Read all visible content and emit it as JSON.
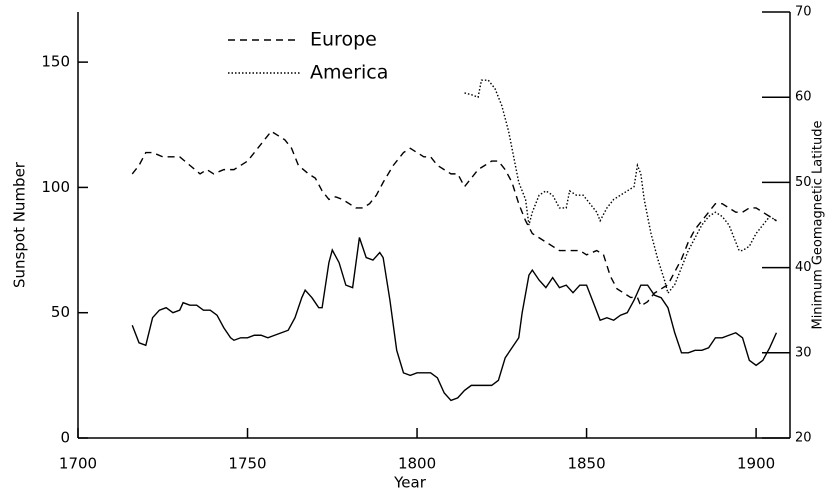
{
  "chart_data": {
    "type": "line",
    "xlabel": "Year",
    "ylabel": "Sunspot Number",
    "y2label": "Minimum Geomagnetic Latitude",
    "xlim": [
      1700,
      1910
    ],
    "xticks": [
      1700,
      1750,
      1800,
      1850,
      1900
    ],
    "ylim": [
      0,
      170
    ],
    "yticks": [
      0,
      50,
      100,
      150
    ],
    "y2lim": [
      20,
      70
    ],
    "y2ticks": [
      20,
      30,
      40,
      50,
      60,
      70
    ],
    "series": [
      {
        "color": "#000000",
        "dash": "solid",
        "axis": "y",
        "x": [
          1716,
          1718,
          1720,
          1722,
          1724,
          1726,
          1728,
          1730,
          1731,
          1733,
          1735,
          1737,
          1739,
          1741,
          1743,
          1745,
          1746,
          1748,
          1750,
          1752,
          1754,
          1756,
          1758,
          1760,
          1762,
          1764,
          1766,
          1767,
          1769,
          1771,
          1772,
          1774,
          1775,
          1777,
          1779,
          1781,
          1783,
          1785,
          1787,
          1789,
          1790,
          1792,
          1794,
          1796,
          1798,
          1800,
          1802,
          1804,
          1806,
          1808,
          1810,
          1812,
          1814,
          1816,
          1818,
          1820,
          1822,
          1824,
          1826,
          1828,
          1830,
          1831,
          1833,
          1834,
          1836,
          1838,
          1840,
          1842,
          1844,
          1846,
          1848,
          1850,
          1852,
          1854,
          1856,
          1858,
          1860,
          1862,
          1864,
          1866,
          1868,
          1870,
          1872,
          1874,
          1876,
          1878,
          1880,
          1882,
          1884,
          1886,
          1888,
          1890,
          1892,
          1894,
          1896,
          1898,
          1900,
          1902,
          1904,
          1906
        ],
        "values": [
          45,
          38,
          37,
          48,
          51,
          52,
          50,
          51,
          54,
          53,
          53,
          51,
          51,
          49,
          44,
          40,
          39,
          40,
          40,
          41,
          41,
          40,
          41,
          42,
          43,
          48,
          56,
          59,
          56,
          52,
          52,
          70,
          75,
          70,
          61,
          60,
          80,
          72,
          71,
          74,
          72,
          55,
          35,
          26,
          25,
          26,
          26,
          26,
          24,
          18,
          15,
          16,
          19,
          21,
          21,
          21,
          21,
          23,
          32,
          36,
          40,
          50,
          65,
          67,
          63,
          60,
          64,
          60,
          61,
          58,
          61,
          61,
          54,
          47,
          48,
          47,
          49,
          50,
          55,
          61,
          61,
          57,
          56,
          52,
          42,
          34,
          34,
          35,
          35,
          36,
          40,
          40,
          41,
          42,
          40,
          31,
          29,
          31,
          36,
          42
        ]
      },
      {
        "name": "Europe",
        "color": "#000000",
        "dash": "dashed",
        "axis": "y2",
        "x": [
          1716,
          1718,
          1720,
          1722,
          1725,
          1730,
          1733,
          1736,
          1738,
          1740,
          1743,
          1746,
          1750,
          1753,
          1756,
          1757,
          1759,
          1761,
          1763,
          1765,
          1768,
          1770,
          1772,
          1774,
          1776,
          1778,
          1780,
          1782,
          1784,
          1786,
          1788,
          1790,
          1793,
          1796,
          1798,
          1800,
          1802,
          1804,
          1806,
          1808,
          1810,
          1812,
          1814,
          1816,
          1818,
          1820,
          1822,
          1824,
          1826,
          1828,
          1830,
          1832,
          1834,
          1836,
          1838,
          1840,
          1842,
          1845,
          1848,
          1850,
          1853,
          1855,
          1857,
          1859,
          1861,
          1863,
          1865,
          1866,
          1868,
          1870,
          1872,
          1874,
          1876,
          1878,
          1880,
          1882,
          1884,
          1886,
          1888,
          1890,
          1892,
          1894,
          1896,
          1898,
          1900,
          1902,
          1904,
          1906
        ],
        "values": [
          51,
          52,
          53.5,
          53.5,
          53,
          53,
          52,
          51,
          51.5,
          51,
          51.5,
          51.5,
          52.5,
          54,
          55.5,
          56,
          55.5,
          55,
          54,
          52,
          51,
          50.5,
          49,
          48,
          48.3,
          48,
          47.5,
          47,
          47,
          47.5,
          48.5,
          50,
          52,
          53.5,
          54,
          53.5,
          53,
          53,
          52,
          51.5,
          51,
          51,
          49.5,
          50.5,
          51.5,
          52,
          52.5,
          52.5,
          51.5,
          50,
          47.5,
          45.5,
          44,
          43.5,
          43,
          42.5,
          42,
          42,
          42,
          41.5,
          42,
          41.5,
          39,
          37.5,
          37,
          36.5,
          36.5,
          35.5,
          36,
          37,
          37.5,
          38,
          39.5,
          41,
          43,
          44.5,
          45.5,
          46.5,
          47.5,
          47.5,
          47,
          46.5,
          46.5,
          47,
          47,
          46.5,
          46,
          45.5
        ]
      },
      {
        "name": "America",
        "color": "#000000",
        "dash": "dotted",
        "axis": "y2",
        "x": [
          1814,
          1816,
          1818,
          1819,
          1821,
          1823,
          1825,
          1827,
          1829,
          1830,
          1832,
          1833,
          1834,
          1836,
          1838,
          1840,
          1842,
          1844,
          1845,
          1847,
          1849,
          1851,
          1853,
          1854,
          1856,
          1858,
          1860,
          1862,
          1864,
          1865,
          1866,
          1867,
          1869,
          1871,
          1873,
          1874,
          1876,
          1878,
          1880,
          1882,
          1884,
          1886,
          1888,
          1890,
          1892,
          1894,
          1895,
          1896,
          1898,
          1900,
          1902,
          1904,
          1906
        ],
        "values": [
          60.5,
          60.3,
          60,
          62,
          62,
          61,
          59,
          56,
          52,
          50,
          48,
          45,
          46.5,
          48.5,
          49,
          48.5,
          47,
          47,
          49,
          48.5,
          48.5,
          47.5,
          46.5,
          45.5,
          47,
          48,
          48.5,
          49,
          49.5,
          52,
          51,
          48,
          44,
          41,
          38.5,
          37,
          38,
          40,
          42,
          43.5,
          45,
          46,
          46.5,
          46,
          45,
          43,
          42,
          42,
          42.5,
          44,
          45,
          46,
          45.5
        ]
      }
    ]
  }
}
